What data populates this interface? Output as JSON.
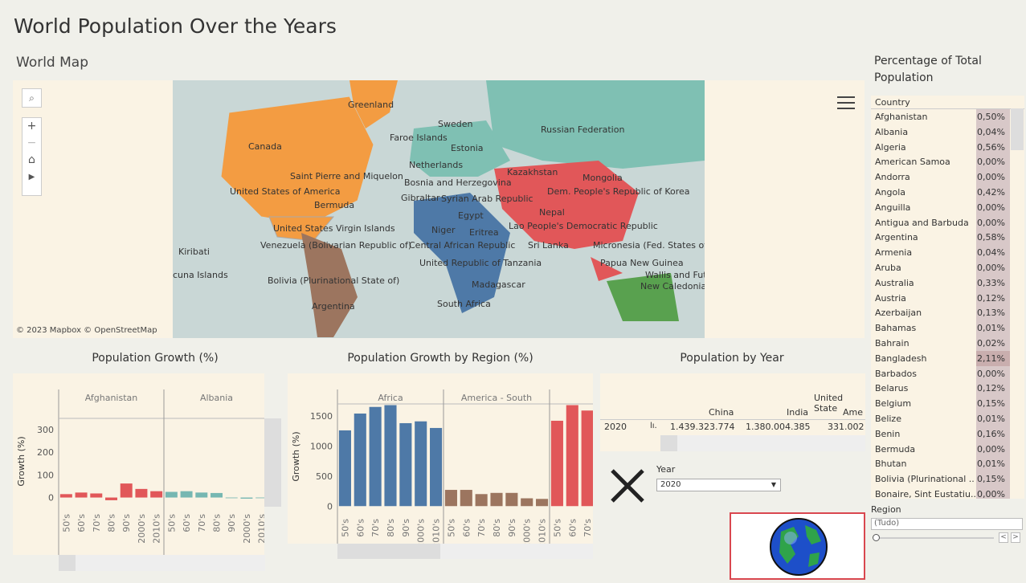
{
  "dashboard_title": "World Population Over the Years",
  "map_section": {
    "title": "World Map",
    "attribution": "© 2023 Mapbox  © OpenStreetMap",
    "labels": [
      "Greenland",
      "Sweden",
      "Russian Federation",
      "Faroe Islands",
      "Estonia",
      "Canada",
      "Netherlands",
      "Kazakhstan",
      "Mongolia",
      "Saint Pierre and Miquelon",
      "Bosnia and Herzegovina",
      "United States of America",
      "Dem. People's Republic of Korea",
      "Gibraltar",
      "Syrian Arab Republic",
      "Bermuda",
      "Egypt",
      "Nepal",
      "United States Virgin Islands",
      "Niger",
      "Lao People's Democratic Republic",
      "Kiribati",
      "Venezuela (Bolivarian Republic of)",
      "Central African Republic",
      "Sri Lanka",
      "Micronesia (Fed. States of",
      "Eritrea",
      "cuna Islands",
      "United Republic of Tanzania",
      "Papua New Guinea",
      "Bolivia (Plurinational State of)",
      "Wallis and Fut",
      "Madagascar",
      "New Caledonia",
      "Argentina",
      "South Africa"
    ]
  },
  "percentage_panel": {
    "title": "Percentage of  Total Population",
    "column_header": "Country",
    "rows": [
      {
        "country": "Afghanistan",
        "pct": "0,50%"
      },
      {
        "country": "Albania",
        "pct": "0,04%"
      },
      {
        "country": "Algeria",
        "pct": "0,56%"
      },
      {
        "country": "American Samoa",
        "pct": "0,00%"
      },
      {
        "country": "Andorra",
        "pct": "0,00%"
      },
      {
        "country": "Angola",
        "pct": "0,42%"
      },
      {
        "country": "Anguilla",
        "pct": "0,00%"
      },
      {
        "country": "Antigua and Barbuda",
        "pct": "0,00%"
      },
      {
        "country": "Argentina",
        "pct": "0,58%"
      },
      {
        "country": "Armenia",
        "pct": "0,04%"
      },
      {
        "country": "Aruba",
        "pct": "0,00%"
      },
      {
        "country": "Australia",
        "pct": "0,33%"
      },
      {
        "country": "Austria",
        "pct": "0,12%"
      },
      {
        "country": "Azerbaijan",
        "pct": "0,13%"
      },
      {
        "country": "Bahamas",
        "pct": "0,01%"
      },
      {
        "country": "Bahrain",
        "pct": "0,02%"
      },
      {
        "country": "Bangladesh",
        "pct": "2,11%"
      },
      {
        "country": "Barbados",
        "pct": "0,00%"
      },
      {
        "country": "Belarus",
        "pct": "0,12%"
      },
      {
        "country": "Belgium",
        "pct": "0,15%"
      },
      {
        "country": "Belize",
        "pct": "0,01%"
      },
      {
        "country": "Benin",
        "pct": "0,16%"
      },
      {
        "country": "Bermuda",
        "pct": "0,00%"
      },
      {
        "country": "Bhutan",
        "pct": "0,01%"
      },
      {
        "country": "Bolivia (Plurinational ..",
        "pct": "0,15%"
      },
      {
        "country": "Bonaire, Sint Eustatiu..",
        "pct": "0,00%"
      }
    ]
  },
  "region_filter": {
    "label": "Region",
    "value": "(Tudo)"
  },
  "year_filter": {
    "label": "Year",
    "value": "2020"
  },
  "population_by_year": {
    "title": "Population by Year",
    "headers": [
      "China",
      "India",
      "United State",
      "Ame"
    ],
    "row": {
      "year": "2020",
      "values": [
        "1.439.323.774",
        "1.380.004.385",
        "331.002"
      ]
    }
  },
  "chart_data": [
    {
      "type": "bar",
      "title": "Population Growth (%)",
      "ylabel": "Growth (%)",
      "ylim": [
        -30,
        350
      ],
      "yticks": [
        0,
        100,
        200,
        300
      ],
      "panels": [
        {
          "name": "Afghanistan",
          "color": "#e15759",
          "categories": [
            "50's",
            "60's",
            "70's",
            "80's",
            "90's",
            "2000's",
            "2010's"
          ],
          "values": [
            15,
            22,
            18,
            -12,
            62,
            38,
            28
          ]
        },
        {
          "name": "Albania",
          "color": "#76b7b2",
          "categories": [
            "50's",
            "60's",
            "70's",
            "80's",
            "90's",
            "2000's",
            "2010's"
          ],
          "values": [
            25,
            28,
            22,
            20,
            -3,
            -5,
            -3
          ]
        }
      ]
    },
    {
      "type": "bar",
      "title": "Population Growth by Region (%)",
      "ylabel": "Growth (%)",
      "ylim": [
        -50,
        1700
      ],
      "yticks": [
        0,
        500,
        1000,
        1500
      ],
      "panels": [
        {
          "name": "Africa",
          "color": "#4e79a7",
          "categories": [
            "50's",
            "60's",
            "70's",
            "80's",
            "90's",
            "2000's",
            "2010's"
          ],
          "values": [
            1260,
            1540,
            1650,
            1680,
            1380,
            1410,
            1300
          ]
        },
        {
          "name": "America - South",
          "color": "#9c755f",
          "categories": [
            "50's",
            "60's",
            "70's",
            "80's",
            "90's",
            "2000's",
            "2010's"
          ],
          "values": [
            270,
            270,
            200,
            220,
            220,
            130,
            120
          ]
        },
        {
          "name": "A",
          "color": "#e15759",
          "categories": [
            "50's",
            "60's",
            "70's"
          ],
          "values": [
            1420,
            1680,
            1590
          ]
        }
      ]
    }
  ]
}
